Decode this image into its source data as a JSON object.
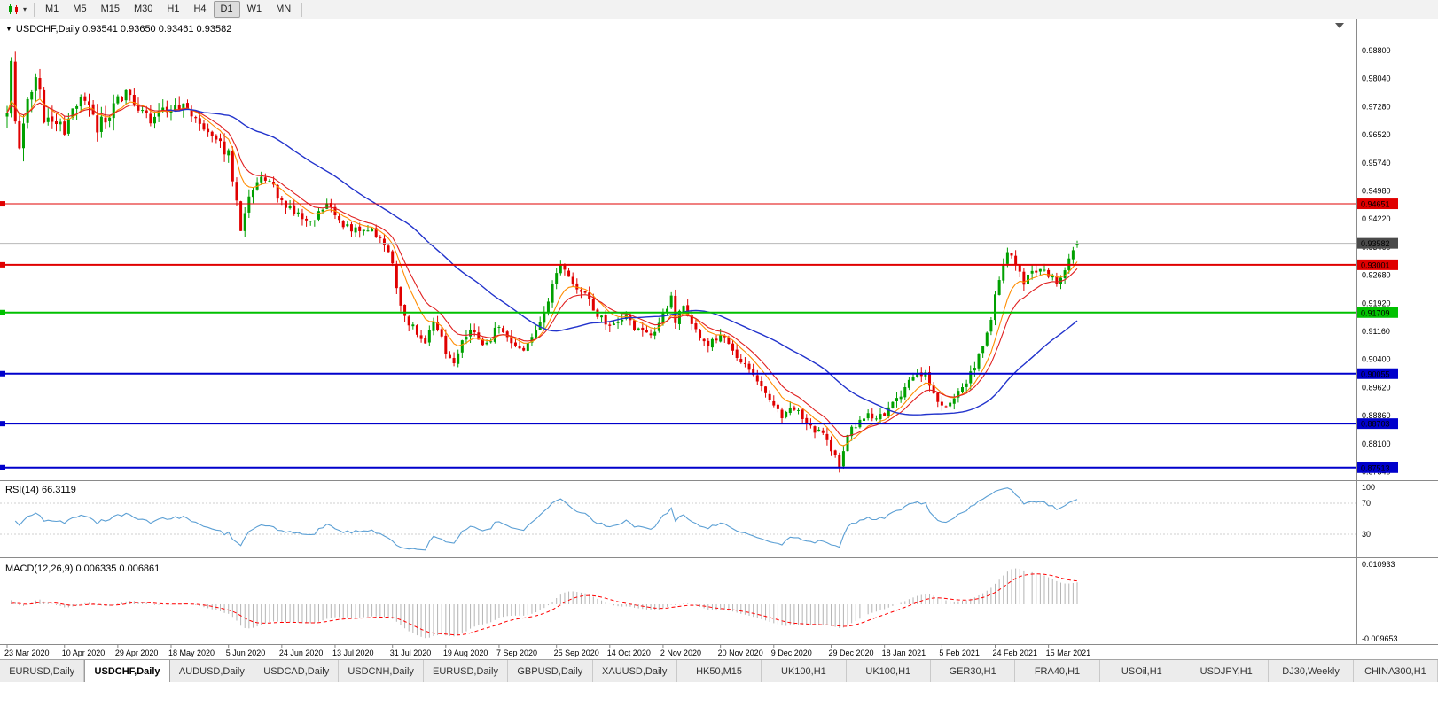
{
  "toolbar": {
    "periods": [
      "M1",
      "M5",
      "M15",
      "M30",
      "H1",
      "H4",
      "D1",
      "W1",
      "MN"
    ],
    "active_period": "D1"
  },
  "chart": {
    "title": "USDCHF,Daily",
    "title_text": "USDCHF,Daily 0.93541 0.93650 0.93461 0.93582",
    "ohlc": {
      "open": "0.93541",
      "high": "0.93650",
      "low": "0.93461",
      "close": "0.93582"
    },
    "current_price_label": "0.93582",
    "y_axis_labels": [
      "0.98800",
      "0.98040",
      "0.97280",
      "0.96520",
      "0.95740",
      "0.94980",
      "0.94220",
      "0.93460",
      "0.92680",
      "0.91920",
      "0.91160",
      "0.90400",
      "0.89620",
      "0.88860",
      "0.88100",
      "0.87340"
    ],
    "hlines": [
      {
        "value": 0.94651,
        "label": "0.94651",
        "color": "#e00000",
        "width": 1
      },
      {
        "value": 0.93001,
        "label": "0.93001",
        "color": "#e00000",
        "width": 2
      },
      {
        "value": 0.91709,
        "label": "0.91709",
        "color": "#00c000",
        "width": 2
      },
      {
        "value": 0.90055,
        "label": "0.90055",
        "color": "#0000cc",
        "width": 2
      },
      {
        "value": 0.88703,
        "label": "0.88703",
        "color": "#0000cc",
        "width": 2
      },
      {
        "value": 0.87513,
        "label": "0.87513",
        "color": "#0000cc",
        "width": 2
      }
    ],
    "x_axis_labels": [
      {
        "label": "23 Mar 2020",
        "index": 0
      },
      {
        "label": "10 Apr 2020",
        "index": 14
      },
      {
        "label": "29 Apr 2020",
        "index": 27
      },
      {
        "label": "18 May 2020",
        "index": 40
      },
      {
        "label": "5 Jun 2020",
        "index": 54
      },
      {
        "label": "24 Jun 2020",
        "index": 67
      },
      {
        "label": "13 Jul 2020",
        "index": 80
      },
      {
        "label": "31 Jul 2020",
        "index": 94
      },
      {
        "label": "19 Aug 2020",
        "index": 107
      },
      {
        "label": "7 Sep 2020",
        "index": 120
      },
      {
        "label": "25 Sep 2020",
        "index": 134
      },
      {
        "label": "14 Oct 2020",
        "index": 147
      },
      {
        "label": "2 Nov 2020",
        "index": 160
      },
      {
        "label": "20 Nov 2020",
        "index": 174
      },
      {
        "label": "9 Dec 2020",
        "index": 187
      },
      {
        "label": "29 Dec 2020",
        "index": 201
      },
      {
        "label": "18 Jan 2021",
        "index": 214
      },
      {
        "label": "5 Feb 2021",
        "index": 228
      },
      {
        "label": "24 Feb 2021",
        "index": 241
      },
      {
        "label": "15 Mar 2021",
        "index": 254
      }
    ]
  },
  "rsi": {
    "label": "RSI(14) 66.3119",
    "value": 66.3119,
    "period": 14,
    "axis_labels": [
      "100",
      "70",
      "30"
    ],
    "upper_level": 70,
    "lower_level": 30
  },
  "macd": {
    "label": "MACD(12,26,9) 0.006335 0.006861",
    "fast": 12,
    "slow": 26,
    "signal": 9,
    "main_value": 0.006335,
    "signal_value": 0.006861,
    "max_label": "0.010933",
    "min_label": "-0.009653"
  },
  "tabs": {
    "items": [
      "EURUSD,Daily",
      "USDCHF,Daily",
      "AUDUSD,Daily",
      "USDCAD,Daily",
      "USDCNH,Daily",
      "EURUSD,Daily",
      "GBPUSD,Daily",
      "XAUUSD,Daily",
      "HK50,M15",
      "UK100,H1",
      "UK100,H1",
      "GER30,H1",
      "FRA40,H1",
      "USOil,H1",
      "USDJPY,H1",
      "DJ30,Weekly",
      "CHINA300,H1"
    ],
    "active_index": 1
  },
  "colors": {
    "bull": "#00a000",
    "bear": "#e00000",
    "ma_fast": "#ff8c00",
    "ma_mid": "#e02020",
    "ma_slow": "#2233cc",
    "rsi_line": "#5b9fd4",
    "macd_hist": "#b4b4b4",
    "macd_signal": "#ff0000",
    "price_line": "#b8b8b8",
    "price_badge_bg": "#4a4a4a",
    "axis_line": "#8a8a8a"
  },
  "chart_data": {
    "type": "candlestick",
    "symbol": "USDCHF",
    "timeframe": "Daily",
    "title": "USDCHF,Daily",
    "num_candles": 262,
    "x_start_label": "23 Mar 2020",
    "x_end_label": "15 Mar 2021",
    "y_range": [
      0.8721,
      0.995
    ],
    "last_candle": {
      "open": 0.93541,
      "high": 0.9365,
      "low": 0.93461,
      "close": 0.93582
    },
    "horizontal_levels": [
      0.94651,
      0.93001,
      0.91709,
      0.90055,
      0.88703,
      0.87513
    ],
    "moving_averages": [
      {
        "type": "ema",
        "period": 8,
        "color": "#ff8c00"
      },
      {
        "type": "ema",
        "period": 13,
        "color": "#e02020"
      },
      {
        "type": "sma",
        "period": 40,
        "color": "#2233cc"
      }
    ],
    "indicators": [
      {
        "name": "RSI",
        "period": 14,
        "value": 66.3119,
        "levels": [
          30,
          70
        ]
      },
      {
        "name": "MACD",
        "fast": 12,
        "slow": 26,
        "signal": 9,
        "main": 0.006335,
        "signal_value": 0.006861,
        "axis_max": 0.010933,
        "axis_min": -0.009653
      }
    ],
    "price_anchors": [
      [
        0,
        0.97
      ],
      [
        1,
        0.9865
      ],
      [
        2,
        0.97
      ],
      [
        3,
        0.962
      ],
      [
        5,
        0.9745
      ],
      [
        7,
        0.98
      ],
      [
        9,
        0.9705
      ],
      [
        12,
        0.968
      ],
      [
        14,
        0.966
      ],
      [
        16,
        0.973
      ],
      [
        19,
        0.9755
      ],
      [
        22,
        0.968
      ],
      [
        25,
        0.97
      ],
      [
        27,
        0.9745
      ],
      [
        29,
        0.9768
      ],
      [
        32,
        0.972
      ],
      [
        35,
        0.969
      ],
      [
        38,
        0.9728
      ],
      [
        40,
        0.9718
      ],
      [
        43,
        0.9735
      ],
      [
        46,
        0.97
      ],
      [
        49,
        0.9645
      ],
      [
        52,
        0.9625
      ],
      [
        54,
        0.96
      ],
      [
        56,
        0.948
      ],
      [
        57,
        0.9405
      ],
      [
        59,
        0.948
      ],
      [
        62,
        0.954
      ],
      [
        64,
        0.9528
      ],
      [
        67,
        0.947
      ],
      [
        70,
        0.9442
      ],
      [
        73,
        0.9412
      ],
      [
        76,
        0.944
      ],
      [
        78,
        0.9474
      ],
      [
        80,
        0.9432
      ],
      [
        83,
        0.9402
      ],
      [
        86,
        0.9396
      ],
      [
        89,
        0.9386
      ],
      [
        92,
        0.936
      ],
      [
        94,
        0.93
      ],
      [
        96,
        0.9192
      ],
      [
        98,
        0.9142
      ],
      [
        100,
        0.912
      ],
      [
        102,
        0.9096
      ],
      [
        104,
        0.914
      ],
      [
        106,
        0.9112
      ],
      [
        107,
        0.9062
      ],
      [
        109,
        0.9042
      ],
      [
        111,
        0.909
      ],
      [
        113,
        0.9128
      ],
      [
        115,
        0.91
      ],
      [
        117,
        0.9086
      ],
      [
        120,
        0.914
      ],
      [
        122,
        0.9112
      ],
      [
        124,
        0.9086
      ],
      [
        126,
        0.9076
      ],
      [
        128,
        0.91
      ],
      [
        130,
        0.914
      ],
      [
        132,
        0.9208
      ],
      [
        134,
        0.9278
      ],
      [
        135,
        0.9298
      ],
      [
        137,
        0.9262
      ],
      [
        139,
        0.9236
      ],
      [
        141,
        0.922
      ],
      [
        143,
        0.9182
      ],
      [
        145,
        0.9152
      ],
      [
        147,
        0.913
      ],
      [
        149,
        0.9146
      ],
      [
        151,
        0.9156
      ],
      [
        153,
        0.9132
      ],
      [
        155,
        0.912
      ],
      [
        157,
        0.9116
      ],
      [
        159,
        0.914
      ],
      [
        161,
        0.9188
      ],
      [
        162,
        0.9208
      ],
      [
        163,
        0.9152
      ],
      [
        165,
        0.918
      ],
      [
        167,
        0.914
      ],
      [
        169,
        0.911
      ],
      [
        171,
        0.9086
      ],
      [
        173,
        0.91
      ],
      [
        175,
        0.9114
      ],
      [
        177,
        0.907
      ],
      [
        179,
        0.904
      ],
      [
        181,
        0.9016
      ],
      [
        183,
        0.8986
      ],
      [
        185,
        0.895
      ],
      [
        187,
        0.8916
      ],
      [
        189,
        0.8892
      ],
      [
        191,
        0.8904
      ],
      [
        193,
        0.8914
      ],
      [
        195,
        0.887
      ],
      [
        197,
        0.8852
      ],
      [
        199,
        0.8846
      ],
      [
        201,
        0.8806
      ],
      [
        203,
        0.876
      ],
      [
        204,
        0.8802
      ],
      [
        206,
        0.886
      ],
      [
        208,
        0.8876
      ],
      [
        210,
        0.8894
      ],
      [
        212,
        0.8886
      ],
      [
        214,
        0.8896
      ],
      [
        216,
        0.892
      ],
      [
        218,
        0.895
      ],
      [
        220,
        0.8986
      ],
      [
        222,
        0.901
      ],
      [
        224,
        0.9
      ],
      [
        226,
        0.8946
      ],
      [
        228,
        0.892
      ],
      [
        230,
        0.8934
      ],
      [
        232,
        0.8956
      ],
      [
        234,
        0.8986
      ],
      [
        236,
        0.903
      ],
      [
        238,
        0.909
      ],
      [
        240,
        0.916
      ],
      [
        241,
        0.9218
      ],
      [
        243,
        0.9298
      ],
      [
        244,
        0.9338
      ],
      [
        246,
        0.9292
      ],
      [
        248,
        0.9256
      ],
      [
        250,
        0.928
      ],
      [
        252,
        0.9296
      ],
      [
        254,
        0.9272
      ],
      [
        256,
        0.9246
      ],
      [
        258,
        0.9288
      ],
      [
        260,
        0.933
      ],
      [
        261,
        0.9358
      ]
    ]
  }
}
